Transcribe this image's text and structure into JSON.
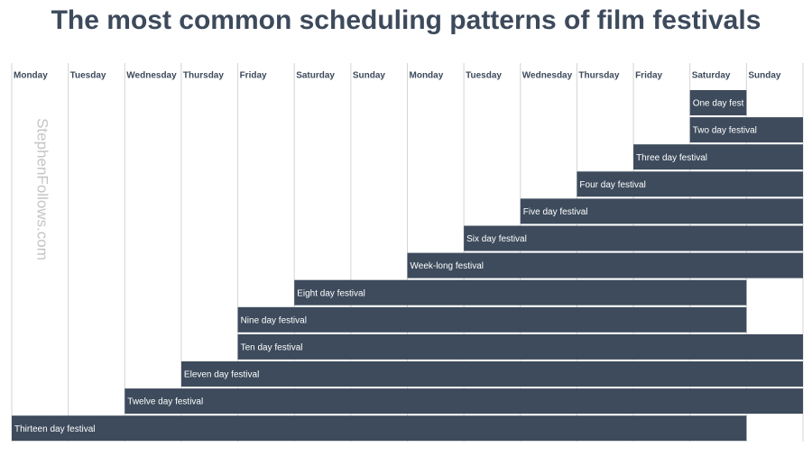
{
  "chart_data": {
    "type": "gantt",
    "title": "The most common scheduling patterns of film festivals",
    "watermark": "StephenFollows.com",
    "color": "#3d4b5c",
    "categories": [
      "Monday",
      "Tuesday",
      "Wednesday",
      "Thursday",
      "Friday",
      "Saturday",
      "Sunday",
      "Monday",
      "Tuesday",
      "Wednesday",
      "Thursday",
      "Friday",
      "Saturday",
      "Sunday"
    ],
    "series": [
      {
        "name": "One day fest",
        "start": 12,
        "end": 13
      },
      {
        "name": "Two day festival",
        "start": 12,
        "end": 14
      },
      {
        "name": "Three day festival",
        "start": 11,
        "end": 14
      },
      {
        "name": "Four day festival",
        "start": 10,
        "end": 14
      },
      {
        "name": "Five day festival",
        "start": 9,
        "end": 14
      },
      {
        "name": "Six day festival",
        "start": 8,
        "end": 14
      },
      {
        "name": "Week-long festival",
        "start": 7,
        "end": 14
      },
      {
        "name": "Eight day festival",
        "start": 5,
        "end": 13
      },
      {
        "name": "Nine day festival",
        "start": 4,
        "end": 13
      },
      {
        "name": "Ten day festival",
        "start": 4,
        "end": 14
      },
      {
        "name": "Eleven day festival",
        "start": 3,
        "end": 14
      },
      {
        "name": "Twelve day festival",
        "start": 2,
        "end": 14
      },
      {
        "name": "Thirteen day festival",
        "start": 0,
        "end": 13
      }
    ]
  }
}
